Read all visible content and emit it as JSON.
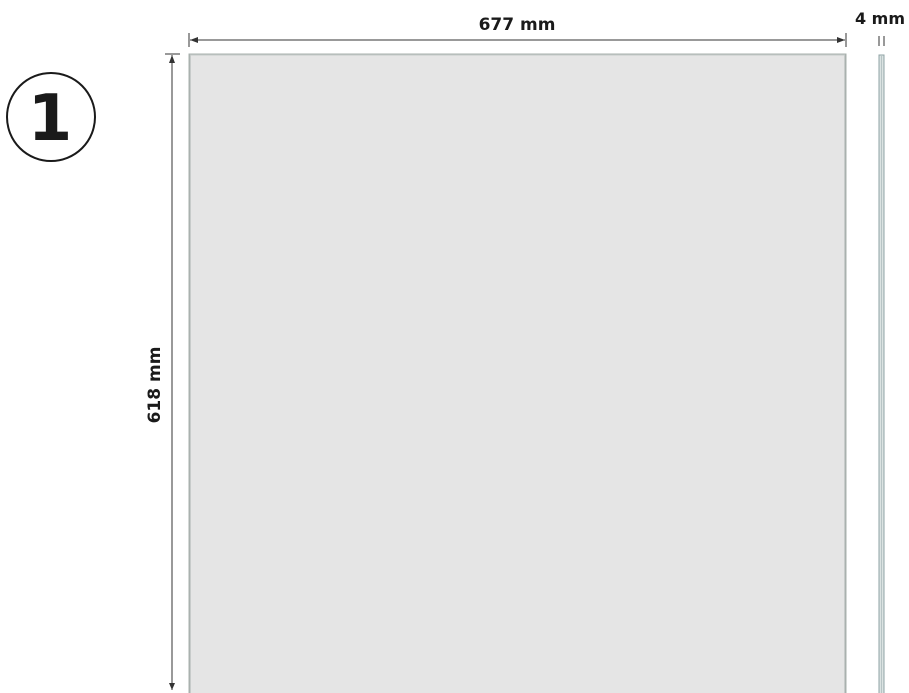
{
  "step": {
    "number": "1"
  },
  "dimensions": {
    "width_label": "677 mm",
    "height_label": "618 mm",
    "thickness_label": "4 mm"
  },
  "colors": {
    "panel_fill": "#e5e5e5",
    "panel_stroke": "#a9b1ae",
    "edge_fill": "#dbe3e2",
    "edge_stroke": "#8fa3a5",
    "line": "#333333"
  }
}
